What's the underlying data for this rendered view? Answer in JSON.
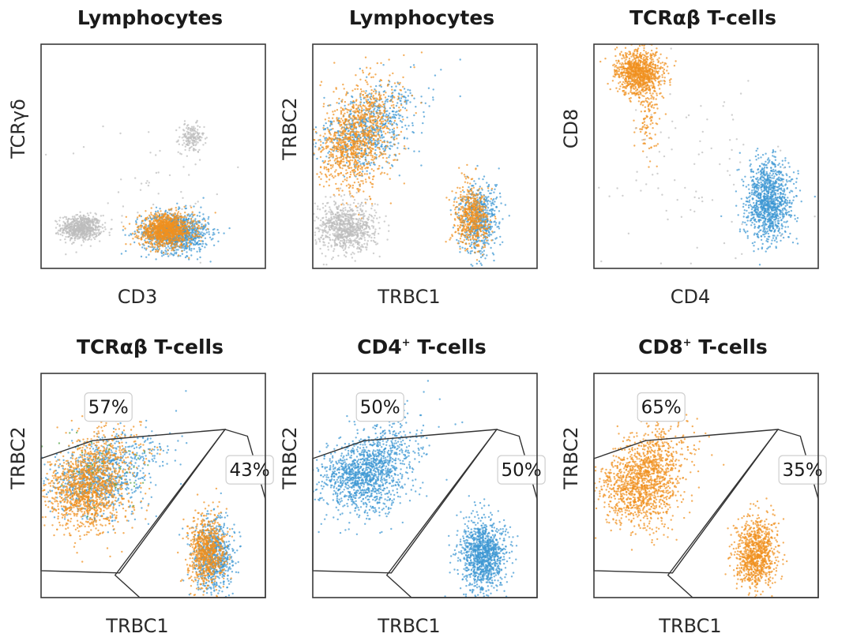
{
  "colors": {
    "orange": "#f0901e",
    "blue": "#3d97d3",
    "grey": "#bdbdbd",
    "green": "#5aa84f"
  },
  "chart_data": [
    {
      "type": "scatter",
      "title": "Lymphocytes",
      "xlabel": "CD3",
      "ylabel": "TCRγδ",
      "xlim": [
        0,
        100
      ],
      "ylim": [
        0,
        100
      ],
      "clusters": [
        {
          "color": "grey",
          "cx": 18,
          "cy": 18,
          "sx": 4.5,
          "sy": 2.8,
          "n": 650
        },
        {
          "color": "grey",
          "cx": 67,
          "cy": 58,
          "sx": 2.8,
          "sy": 3.2,
          "n": 170
        },
        {
          "color": "grey",
          "cx": 48,
          "cy": 35,
          "sx": 18,
          "sy": 16,
          "n": 55
        },
        {
          "color": "blue",
          "cx": 60,
          "cy": 16,
          "sx": 7.5,
          "sy": 4.5,
          "n": 1000
        },
        {
          "color": "orange",
          "cx": 56,
          "cy": 17,
          "sx": 6,
          "sy": 3.6,
          "n": 1100
        }
      ]
    },
    {
      "type": "scatter",
      "title": "Lymphocytes",
      "xlabel": "TRBC1",
      "ylabel": "TRBC2",
      "xlim": [
        0,
        100
      ],
      "ylim": [
        0,
        100
      ],
      "clusters": [
        {
          "color": "blue",
          "cx": 22,
          "cy": 62,
          "sx": 10,
          "sy": 9,
          "n": 700,
          "skew": 0.55
        },
        {
          "color": "orange",
          "cx": 18,
          "cy": 58,
          "sx": 8,
          "sy": 11,
          "n": 1100,
          "skew": 0.45
        },
        {
          "color": "grey",
          "cx": 15,
          "cy": 18,
          "sx": 6.5,
          "sy": 5.5,
          "n": 800
        },
        {
          "color": "blue",
          "cx": 74,
          "cy": 22,
          "sx": 4.5,
          "sy": 7.5,
          "n": 550
        },
        {
          "color": "orange",
          "cx": 71,
          "cy": 23,
          "sx": 3.8,
          "sy": 7,
          "n": 550
        }
      ]
    },
    {
      "type": "scatter",
      "title": "TCRαβ T-cells",
      "xlabel": "CD4",
      "ylabel": "CD8",
      "xlim": [
        0,
        100
      ],
      "ylim": [
        0,
        100
      ],
      "clusters": [
        {
          "color": "orange",
          "cx": 20,
          "cy": 87,
          "sx": 5,
          "sy": 5,
          "n": 950
        },
        {
          "color": "orange",
          "cx": 24,
          "cy": 68,
          "sx": 2.5,
          "sy": 9,
          "n": 120
        },
        {
          "color": "blue",
          "cx": 78,
          "cy": 30,
          "sx": 5,
          "sy": 9,
          "n": 1100
        },
        {
          "color": "grey",
          "cx": 45,
          "cy": 45,
          "sx": 22,
          "sy": 22,
          "n": 90
        }
      ]
    },
    {
      "type": "scatter",
      "title": "TCRαβ T-cells",
      "xlabel": "TRBC1",
      "ylabel": "TRBC2",
      "xlim": [
        0,
        100
      ],
      "ylim": [
        0,
        100
      ],
      "gates": [
        {
          "label": "57%",
          "points": [
            [
              0,
              12
            ],
            [
              0,
              62
            ],
            [
              23,
              70
            ],
            [
              82,
              75
            ],
            [
              35,
              11
            ]
          ]
        },
        {
          "label": "43%",
          "points": [
            [
              33,
              10
            ],
            [
              44,
              0
            ],
            [
              100,
              0
            ],
            [
              100,
              44
            ],
            [
              92,
              72
            ],
            [
              82,
              75
            ]
          ]
        }
      ],
      "clusters": [
        {
          "color": "blue",
          "cx": 24,
          "cy": 54,
          "sx": 11,
          "sy": 8.5,
          "n": 900,
          "skew": 0.5
        },
        {
          "color": "orange",
          "cx": 20,
          "cy": 50,
          "sx": 9,
          "sy": 10,
          "n": 1400,
          "skew": 0.4
        },
        {
          "color": "green",
          "cx": 28,
          "cy": 58,
          "sx": 12,
          "sy": 7,
          "n": 45
        },
        {
          "color": "blue",
          "cx": 77,
          "cy": 19,
          "sx": 4.5,
          "sy": 8,
          "n": 700
        },
        {
          "color": "orange",
          "cx": 74,
          "cy": 20,
          "sx": 4,
          "sy": 8,
          "n": 750
        }
      ]
    },
    {
      "type": "scatter",
      "title": "CD4",
      "title_sup": "+",
      "title_suffix": " T-cells",
      "xlabel": "TRBC1",
      "ylabel": "TRBC2",
      "xlim": [
        0,
        100
      ],
      "ylim": [
        0,
        100
      ],
      "gates": [
        {
          "label": "50%",
          "points": [
            [
              0,
              12
            ],
            [
              0,
              62
            ],
            [
              23,
              70
            ],
            [
              82,
              75
            ],
            [
              35,
              11
            ]
          ]
        },
        {
          "label": "50%",
          "points": [
            [
              33,
              10
            ],
            [
              44,
              0
            ],
            [
              100,
              0
            ],
            [
              100,
              44
            ],
            [
              92,
              72
            ],
            [
              82,
              75
            ]
          ]
        }
      ],
      "clusters": [
        {
          "color": "blue",
          "cx": 22,
          "cy": 56,
          "sx": 10,
          "sy": 9,
          "n": 1400,
          "skew": 0.5
        },
        {
          "color": "blue",
          "cx": 76,
          "cy": 19,
          "sx": 5,
          "sy": 8,
          "n": 1100
        }
      ]
    },
    {
      "type": "scatter",
      "title": "CD8",
      "title_sup": "+",
      "title_suffix": " T-cells",
      "xlabel": "TRBC1",
      "ylabel": "TRBC2",
      "xlim": [
        0,
        100
      ],
      "ylim": [
        0,
        100
      ],
      "gates": [
        {
          "label": "65%",
          "points": [
            [
              0,
              12
            ],
            [
              0,
              62
            ],
            [
              23,
              70
            ],
            [
              82,
              75
            ],
            [
              35,
              11
            ]
          ]
        },
        {
          "label": "35%",
          "points": [
            [
              33,
              10
            ],
            [
              44,
              0
            ],
            [
              100,
              0
            ],
            [
              100,
              44
            ],
            [
              92,
              72
            ],
            [
              82,
              75
            ]
          ]
        }
      ],
      "clusters": [
        {
          "color": "orange",
          "cx": 20,
          "cy": 52,
          "sx": 9,
          "sy": 10,
          "n": 1400,
          "skew": 0.45
        },
        {
          "color": "orange",
          "cx": 72,
          "cy": 20,
          "sx": 4.5,
          "sy": 8,
          "n": 900
        }
      ]
    }
  ]
}
